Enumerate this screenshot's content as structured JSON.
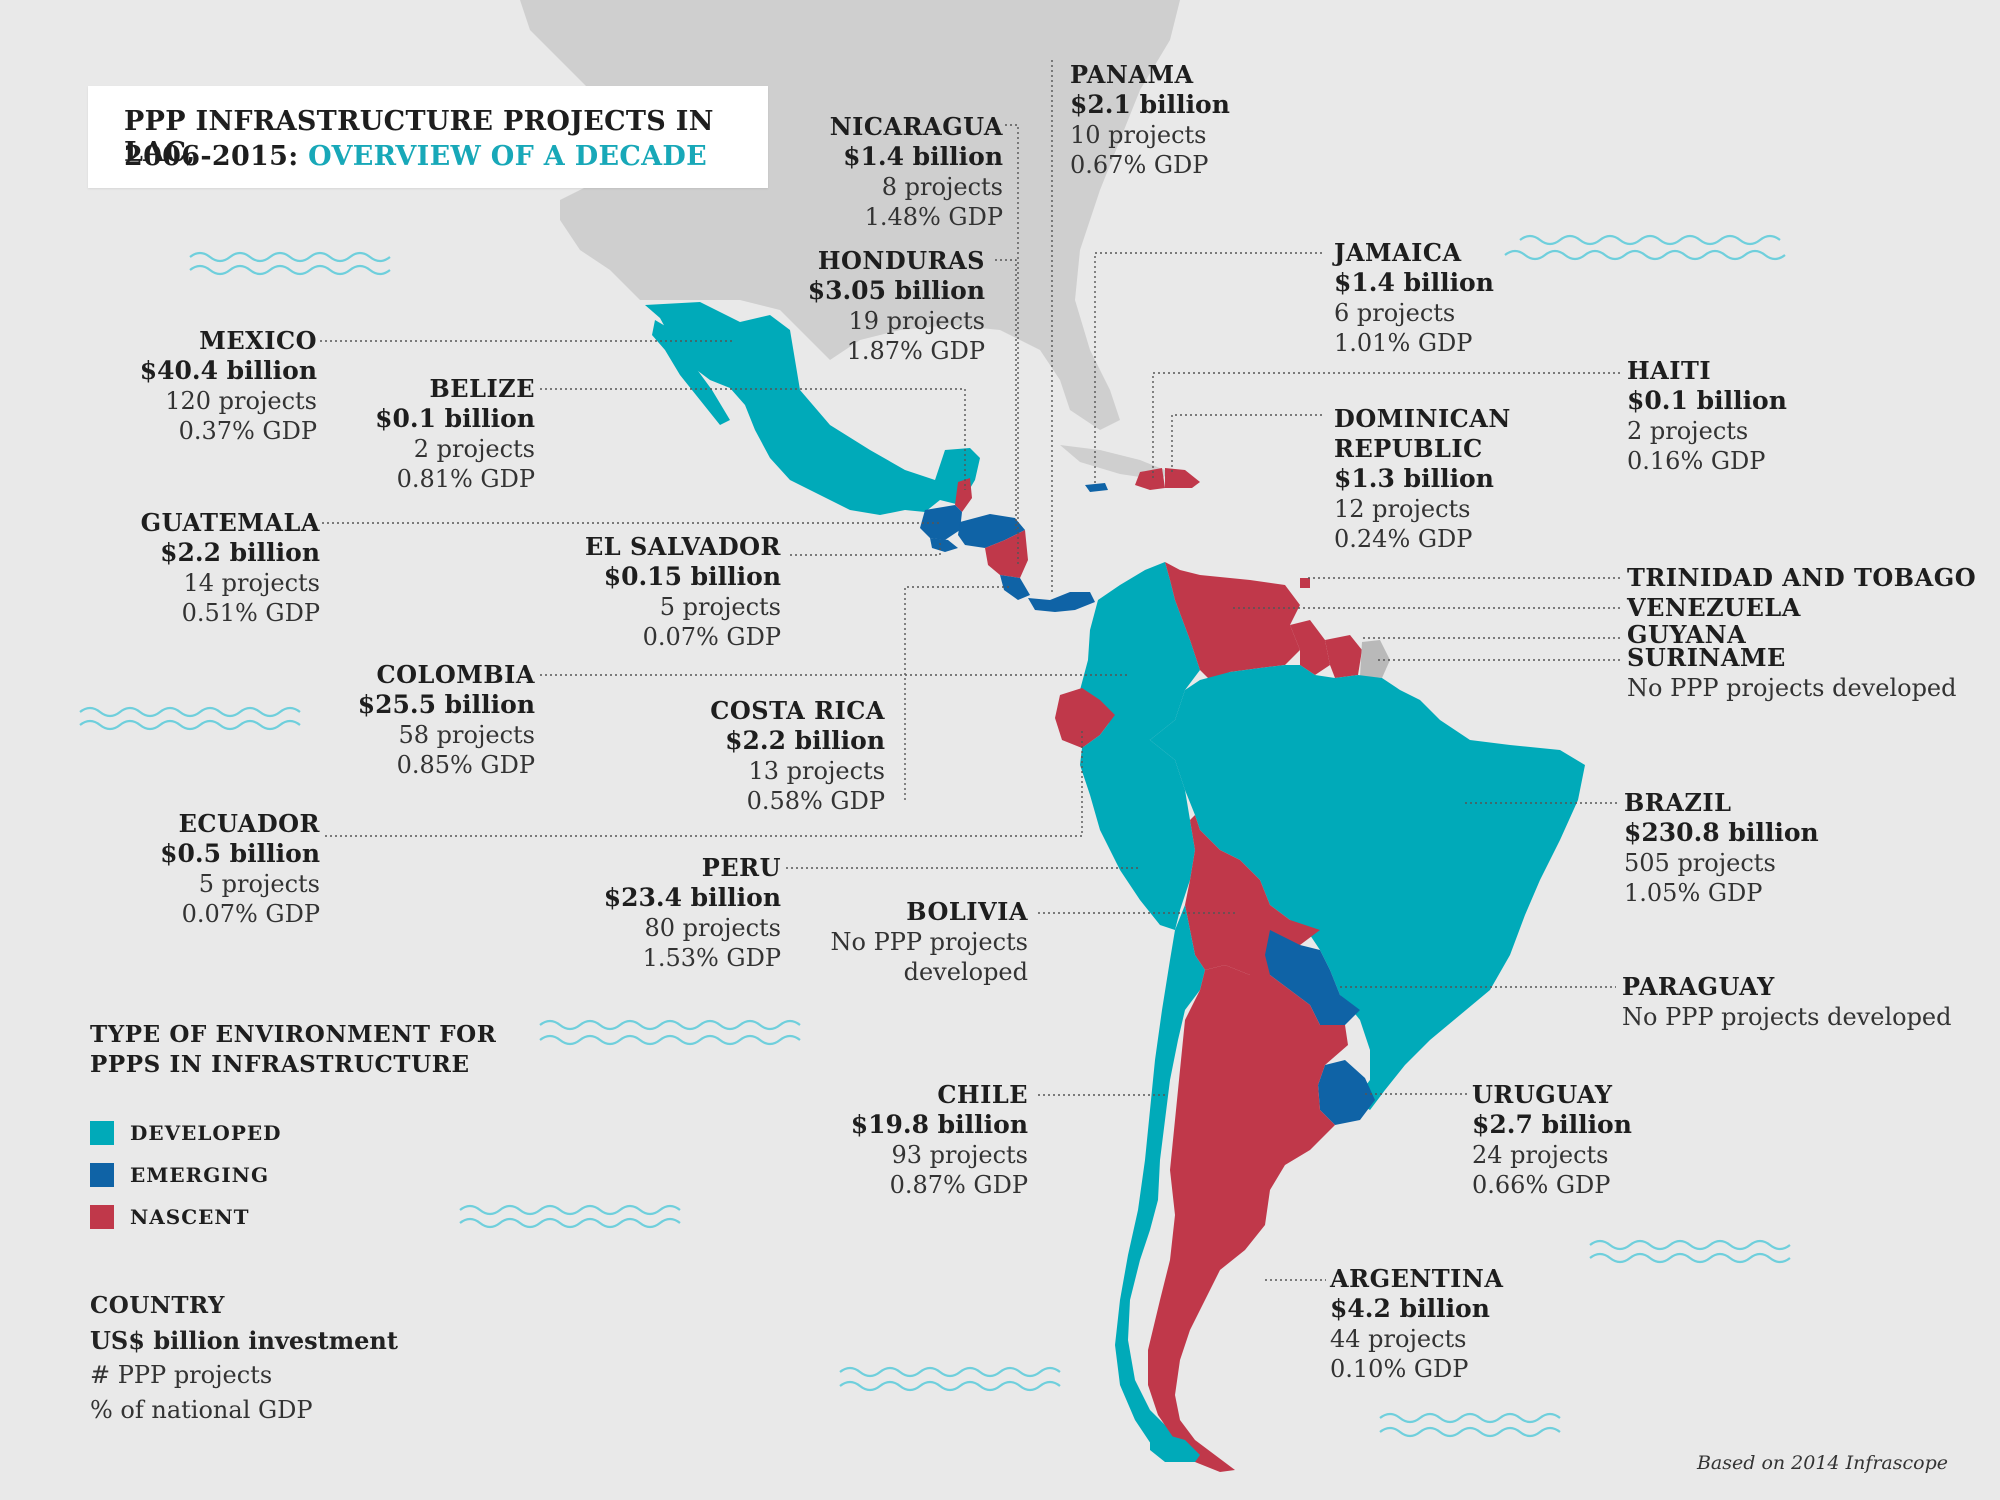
{
  "title": {
    "line1": "PPP INFRASTRUCTURE PROJECTS IN LAC,",
    "line2_prefix": "2006-2015: ",
    "line2_accent": "OVERVIEW OF A DECADE"
  },
  "colors": {
    "developed": "#00aab9",
    "emerging": "#0f63a6",
    "nascent": "#c0384a",
    "no_data": "#b9b9b9",
    "land_background": "#cfcfcf",
    "sea": "#e9e9e9",
    "accent_title": "#18a8b8",
    "wave": "#6fcfdc"
  },
  "countries": {
    "mexico": {
      "name": "MEXICO",
      "investment": "$40.4 billion",
      "projects": "120 projects",
      "gdp": "0.37% GDP",
      "environment": "developed"
    },
    "belize": {
      "name": "BELIZE",
      "investment": "$0.1 billion",
      "projects": "2 projects",
      "gdp": "0.81% GDP",
      "environment": "nascent"
    },
    "guatemala": {
      "name": "GUATEMALA",
      "investment": "$2.2 billion",
      "projects": "14 projects",
      "gdp": "0.51% GDP",
      "environment": "emerging"
    },
    "honduras": {
      "name": "HONDURAS",
      "investment": "$3.05 billion",
      "projects": "19 projects",
      "gdp": "1.87% GDP",
      "environment": "emerging"
    },
    "nicaragua": {
      "name": "NICARAGUA",
      "investment": "$1.4 billion",
      "projects": "8 projects",
      "gdp": "1.48% GDP",
      "environment": "nascent"
    },
    "panama": {
      "name": "PANAMA",
      "investment": "$2.1 billion",
      "projects": "10 projects",
      "gdp": "0.67% GDP",
      "environment": "emerging"
    },
    "el_salvador": {
      "name": "EL SALVADOR",
      "investment": "$0.15 billion",
      "projects": "5 projects",
      "gdp": "0.07% GDP",
      "environment": "emerging"
    },
    "costa_rica": {
      "name": "COSTA RICA",
      "investment": "$2.2 billion",
      "projects": "13 projects",
      "gdp": "0.58% GDP",
      "environment": "emerging"
    },
    "colombia": {
      "name": "COLOMBIA",
      "investment": "$25.5 billion",
      "projects": "58 projects",
      "gdp": "0.85% GDP",
      "environment": "developed"
    },
    "ecuador": {
      "name": "ECUADOR",
      "investment": "$0.5 billion",
      "projects": "5 projects",
      "gdp": "0.07% GDP",
      "environment": "nascent"
    },
    "peru": {
      "name": "PERU",
      "investment": "$23.4 billion",
      "projects": "80 projects",
      "gdp": "1.53% GDP",
      "environment": "developed"
    },
    "bolivia": {
      "name": "BOLIVIA",
      "note1": "No PPP projects",
      "note2": "developed",
      "environment": "nascent"
    },
    "chile": {
      "name": "CHILE",
      "investment": "$19.8 billion",
      "projects": "93 projects",
      "gdp": "0.87% GDP",
      "environment": "developed"
    },
    "jamaica": {
      "name": "JAMAICA",
      "investment": "$1.4 billion",
      "projects": "6 projects",
      "gdp": "1.01% GDP",
      "environment": "emerging"
    },
    "haiti": {
      "name": "HAITI",
      "investment": "$0.1 billion",
      "projects": "2 projects",
      "gdp": "0.16% GDP",
      "environment": "nascent"
    },
    "dominican_republic": {
      "name1": "DOMINICAN",
      "name2": "REPUBLIC",
      "investment": "$1.3 billion",
      "projects": "12 projects",
      "gdp": "0.24% GDP",
      "environment": "nascent"
    },
    "trinidad": {
      "name": "TRINIDAD AND TOBAGO",
      "environment": "nascent"
    },
    "venezuela": {
      "name": "VENEZUELA",
      "environment": "nascent"
    },
    "guyana": {
      "name": "GUYANA",
      "environment": "nascent"
    },
    "suriname": {
      "name": "SURINAME",
      "note": "No PPP projects developed",
      "environment": "no_data"
    },
    "brazil": {
      "name": "BRAZIL",
      "investment": "$230.8 billion",
      "projects": "505 projects",
      "gdp": "1.05% GDP",
      "environment": "developed"
    },
    "paraguay": {
      "name": "PARAGUAY",
      "note": "No PPP projects developed",
      "environment": "emerging"
    },
    "uruguay": {
      "name": "URUGUAY",
      "investment": "$2.7 billion",
      "projects": "24 projects",
      "gdp": "0.66% GDP",
      "environment": "emerging"
    },
    "argentina": {
      "name": "ARGENTINA",
      "investment": "$4.2 billion",
      "projects": "44 projects",
      "gdp": "0.10% GDP",
      "environment": "nascent"
    }
  },
  "legend": {
    "title_line1": "TYPE OF ENVIRONMENT FOR",
    "title_line2": "PPPS IN INFRASTRUCTURE",
    "items": [
      {
        "label": "DEVELOPED",
        "color": "#00aab9"
      },
      {
        "label": "EMERGING",
        "color": "#0f63a6"
      },
      {
        "label": "NASCENT",
        "color": "#c0384a"
      }
    ]
  },
  "key": {
    "line1": "COUNTRY",
    "line2": "US$ billion investment",
    "line3": "# PPP projects",
    "line4": "% of national GDP"
  },
  "source": "Based on 2014 Infrascope"
}
